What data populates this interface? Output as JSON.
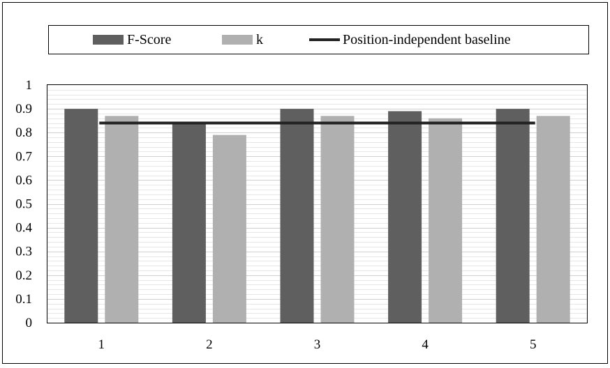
{
  "chart_data": {
    "type": "bar",
    "title": "",
    "xlabel": "",
    "ylabel": "",
    "categories": [
      "1",
      "2",
      "3",
      "4",
      "5"
    ],
    "series": [
      {
        "name": "F-Score",
        "values": [
          0.9,
          0.84,
          0.9,
          0.89,
          0.9
        ],
        "color": "#5f5f5f"
      },
      {
        "name": "k",
        "values": [
          0.87,
          0.79,
          0.87,
          0.86,
          0.87
        ],
        "color": "#b0b0b0"
      }
    ],
    "baseline": {
      "name": "Position-independent baseline",
      "value": 0.84,
      "color": "#222222"
    },
    "ylim": [
      0,
      1
    ],
    "yticks": [
      "0",
      "0.1",
      "0.2",
      "0.3",
      "0.4",
      "0.5",
      "0.6",
      "0.7",
      "0.8",
      "0.9",
      "1"
    ],
    "grid": true,
    "legend_position": "top"
  }
}
